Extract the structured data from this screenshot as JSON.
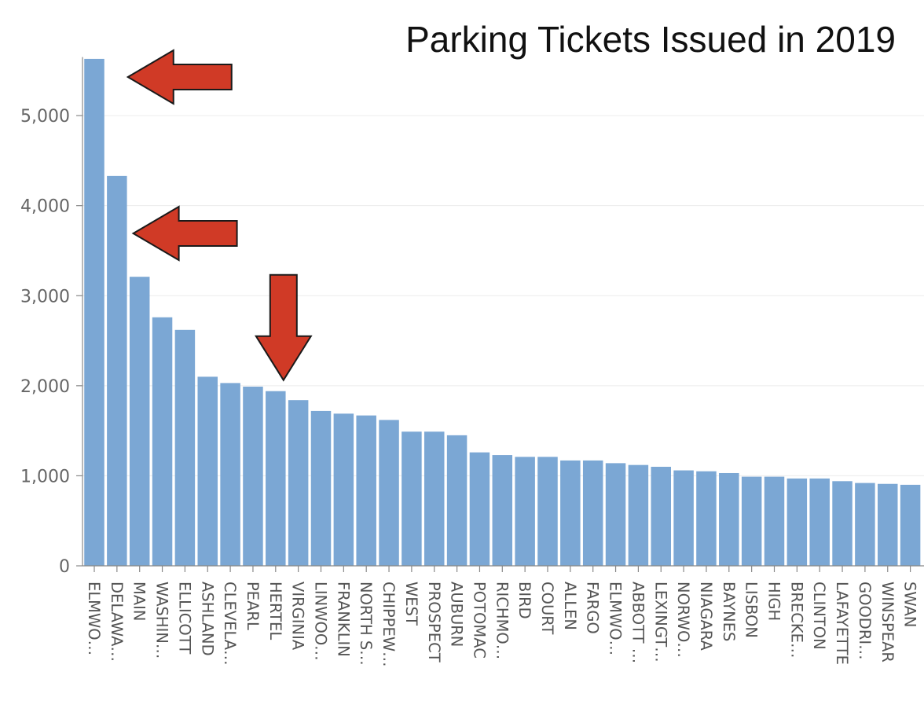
{
  "chart_data": {
    "type": "bar",
    "title": "Parking Tickets Issued in 2019",
    "xlabel": "",
    "ylabel": "",
    "ylim": [
      0,
      5650
    ],
    "yticks": [
      0,
      1000,
      2000,
      3000,
      4000,
      5000
    ],
    "ytick_labels": [
      "0",
      "1,000",
      "2,000",
      "3,000",
      "4,000",
      "5,000"
    ],
    "grid": true,
    "bar_color": "#7ba7d4",
    "categories": [
      "ELMWO…",
      "DELAWA…",
      "MAIN",
      "WASHIN…",
      "ELLICOTT",
      "ASHLAND",
      "CLEVELA…",
      "PEARL",
      "HERTEL",
      "VIRGINIA",
      "LINWOO…",
      "FRANKLIN",
      "NORTH S…",
      "CHIPPEW…",
      "WEST",
      "PROSPECT",
      "AUBURN",
      "POTOMAC",
      "RICHMO…",
      "BIRD",
      "COURT",
      "ALLEN",
      "FARGO",
      "ELMWO…",
      "ABBOTT …",
      "LEXINGT…",
      "NORWO…",
      "NIAGARA",
      "BAYNES",
      "LISBON",
      "HIGH",
      "BRECKE…",
      "CLINTON",
      "LAFAYETTE",
      "GOODRI…",
      "WINSPEAR",
      "SWAN"
    ],
    "values": [
      5630,
      4330,
      3210,
      2760,
      2620,
      2100,
      2030,
      1990,
      1940,
      1840,
      1720,
      1690,
      1670,
      1620,
      1490,
      1490,
      1450,
      1260,
      1230,
      1210,
      1210,
      1170,
      1170,
      1140,
      1120,
      1100,
      1060,
      1050,
      1030,
      990,
      990,
      970,
      970,
      940,
      920,
      910,
      900
    ],
    "annotations": [
      {
        "type": "arrow",
        "direction": "left",
        "points_to": "ELMWO…",
        "color": "#d03a26"
      },
      {
        "type": "arrow",
        "direction": "left",
        "points_to": "DELAWA…",
        "color": "#d03a26"
      },
      {
        "type": "arrow",
        "direction": "down",
        "points_to": "HERTEL",
        "color": "#d03a26"
      }
    ]
  }
}
